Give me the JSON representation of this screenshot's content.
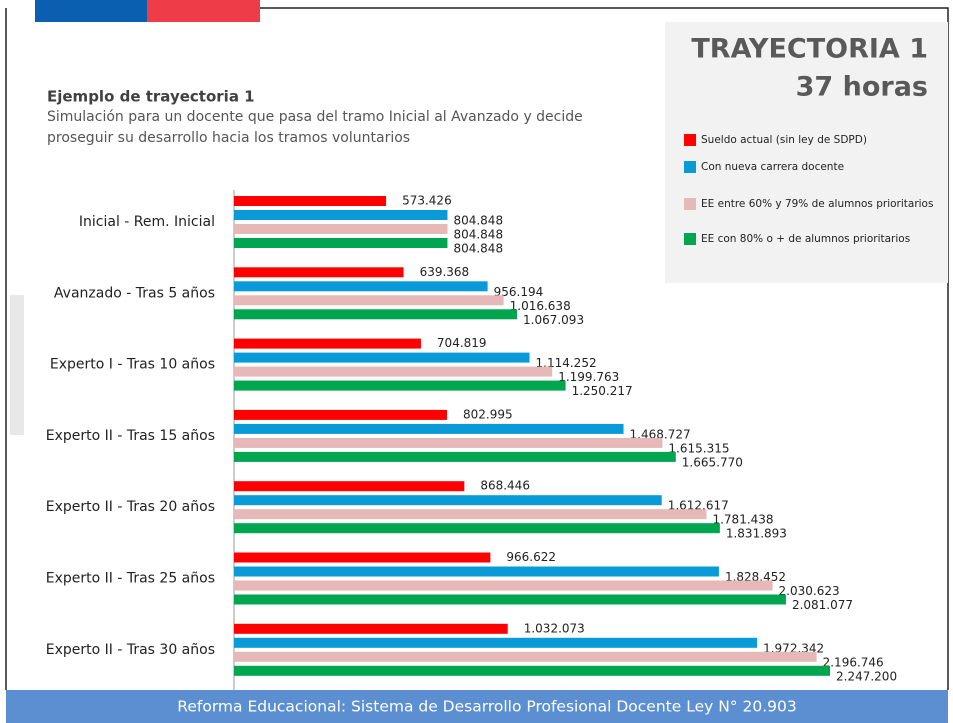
{
  "chart_data": {
    "type": "bar",
    "orientation": "horizontal",
    "title": "TRAYECTORIA 1",
    "subtitle": "37 horas",
    "caption_title": "Ejemplo de trayectoria 1",
    "caption_lines": [
      "Simulación para un docente que pasa del tramo Inicial al Avanzado y decide",
      "proseguir su desarrollo hacia los tramos voluntarios"
    ],
    "categories": [
      "Inicial - Rem. Inicial",
      "Avanzado - Tras 5 años",
      "Experto I - Tras 10 años",
      "Experto II - Tras 15 años",
      "Experto II - Tras 20 años",
      "Experto II - Tras 25 años",
      "Experto II - Tras 30 años"
    ],
    "series": [
      {
        "name": "Sueldo actual (sin ley de SDPD)",
        "color": "#ff0000",
        "values": [
          573426,
          639368,
          704819,
          802995,
          868446,
          966622,
          1032073
        ],
        "value_labels": [
          "573.426",
          "639.368",
          "704.819",
          "802.995",
          "868.446",
          "966.622",
          "1.032.073"
        ]
      },
      {
        "name": "Con nueva carrera docente",
        "color": "#0a9ad8",
        "values": [
          804848,
          956194,
          1114252,
          1468727,
          1612617,
          1828452,
          1972342
        ],
        "value_labels": [
          "804.848",
          "956.194",
          "1.114.252",
          "1.468.727",
          "1.612.617",
          "1.828.452",
          "1.972.342"
        ]
      },
      {
        "name": "EE entre 60% y  79% de alumnos prioritarios",
        "color": "#e6b8b7",
        "values": [
          804848,
          1016638,
          1199763,
          1615315,
          1781438,
          2030623,
          2196746
        ],
        "value_labels": [
          "804.848",
          "1.016.638",
          "1.199.763",
          "1.615.315",
          "1.781.438",
          "2.030.623",
          "2.196.746"
        ]
      },
      {
        "name": "EE con 80% o +  de alumnos prioritarios",
        "color": "#00a550",
        "values": [
          804848,
          1067093,
          1250217,
          1665770,
          1831893,
          2081077,
          2247200
        ],
        "value_labels": [
          "804.848",
          "1.067.093",
          "1.250.217",
          "1.665.770",
          "1.831.893",
          "2.081.077",
          "2.247.200"
        ]
      }
    ]
  },
  "footer": "Reforma Educacional: Sistema de Desarrollo Profesional Docente Ley N°  20.903"
}
